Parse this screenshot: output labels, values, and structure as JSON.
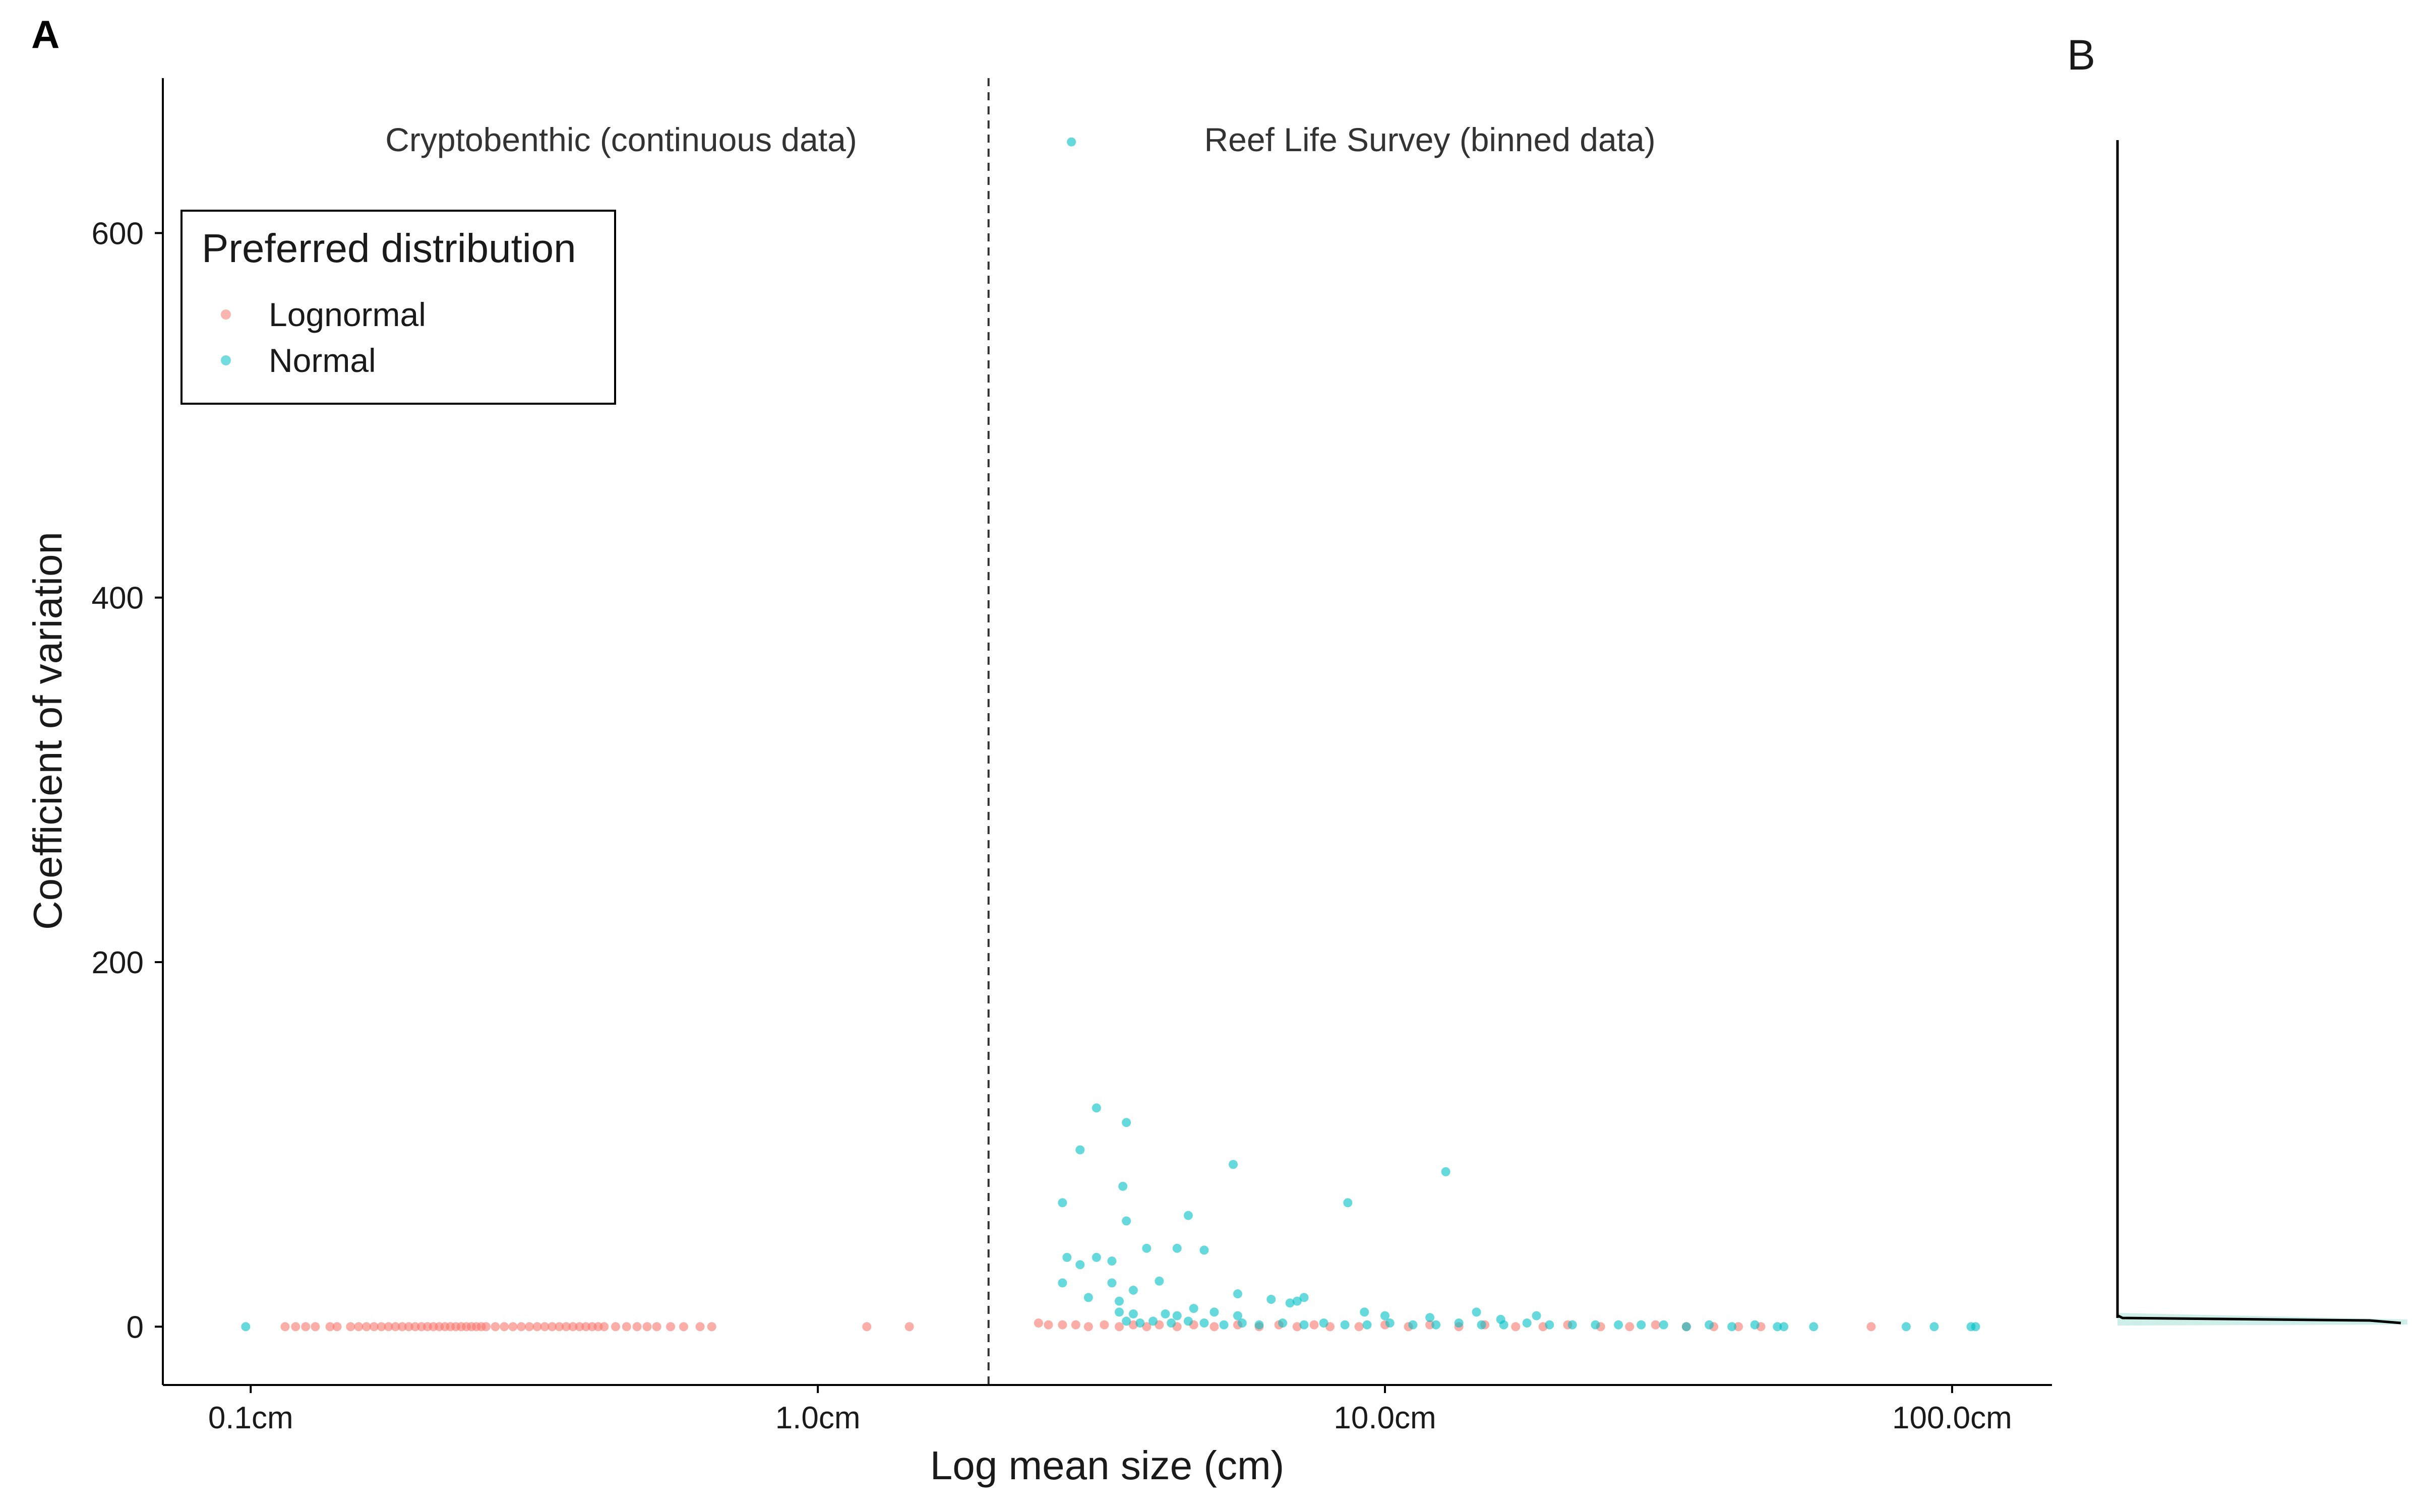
{
  "chart_data": [
    {
      "panel_label": "A",
      "type": "scatter",
      "title": "",
      "xlabel": "Log mean size (cm)",
      "ylabel": "Coefficient of variation",
      "x_scale": "log10",
      "xlim": [
        0.07,
        150
      ],
      "ylim": [
        -32,
        685
      ],
      "x_ticks": [
        {
          "value": 0.1,
          "label": "0.1cm"
        },
        {
          "value": 1,
          "label": "1.0cm"
        },
        {
          "value": 10,
          "label": "10.0cm"
        },
        {
          "value": 100,
          "label": "100.0cm"
        }
      ],
      "y_ticks": [
        {
          "value": 0,
          "label": "0"
        },
        {
          "value": 200,
          "label": "200"
        },
        {
          "value": 400,
          "label": "400"
        },
        {
          "value": 600,
          "label": "600"
        }
      ],
      "grid": false,
      "divider_x": 2,
      "region_labels": [
        {
          "text": "Cryptobenthic (continuous data)",
          "x": 0.45
        },
        {
          "text": "Reef Life Survey (binned data)",
          "x": 12
        }
      ],
      "legend": {
        "title": "Preferred distribution",
        "placement": "top-left",
        "entries": [
          {
            "label": "Lognormal",
            "color": "#F8766D"
          },
          {
            "label": "Normal",
            "color": "#00BFC4"
          }
        ]
      },
      "series": [
        {
          "name": "Lognormal",
          "color": "#F8766D",
          "points": [
            [
              0.115,
              0
            ],
            [
              0.12,
              0
            ],
            [
              0.125,
              0
            ],
            [
              0.13,
              0
            ],
            [
              0.138,
              0
            ],
            [
              0.142,
              0
            ],
            [
              0.15,
              0
            ],
            [
              0.155,
              0
            ],
            [
              0.16,
              0
            ],
            [
              0.165,
              0
            ],
            [
              0.17,
              0
            ],
            [
              0.175,
              0
            ],
            [
              0.18,
              0
            ],
            [
              0.185,
              0
            ],
            [
              0.19,
              0
            ],
            [
              0.195,
              0
            ],
            [
              0.2,
              0
            ],
            [
              0.205,
              0
            ],
            [
              0.21,
              0
            ],
            [
              0.215,
              0
            ],
            [
              0.22,
              0
            ],
            [
              0.225,
              0
            ],
            [
              0.23,
              0
            ],
            [
              0.235,
              0
            ],
            [
              0.24,
              0
            ],
            [
              0.245,
              0
            ],
            [
              0.25,
              0
            ],
            [
              0.255,
              0
            ],
            [
              0.26,
              0
            ],
            [
              0.27,
              0
            ],
            [
              0.28,
              0
            ],
            [
              0.29,
              0
            ],
            [
              0.3,
              0
            ],
            [
              0.31,
              0
            ],
            [
              0.32,
              0
            ],
            [
              0.33,
              0
            ],
            [
              0.34,
              0
            ],
            [
              0.35,
              0
            ],
            [
              0.36,
              0
            ],
            [
              0.37,
              0
            ],
            [
              0.38,
              0
            ],
            [
              0.39,
              0
            ],
            [
              0.4,
              0
            ],
            [
              0.41,
              0
            ],
            [
              0.42,
              0
            ],
            [
              0.44,
              0
            ],
            [
              0.46,
              0
            ],
            [
              0.48,
              0
            ],
            [
              0.5,
              0
            ],
            [
              0.52,
              0
            ],
            [
              0.55,
              0
            ],
            [
              0.58,
              0
            ],
            [
              0.62,
              0
            ],
            [
              0.65,
              0
            ],
            [
              1.22,
              0
            ],
            [
              1.45,
              0
            ],
            [
              2.45,
              2
            ],
            [
              2.55,
              1
            ],
            [
              2.7,
              1
            ],
            [
              2.85,
              1
            ],
            [
              3.0,
              0
            ],
            [
              3.2,
              1
            ],
            [
              3.4,
              0
            ],
            [
              3.6,
              1
            ],
            [
              3.8,
              0
            ],
            [
              4.0,
              1
            ],
            [
              4.3,
              0
            ],
            [
              4.6,
              1
            ],
            [
              5.0,
              0
            ],
            [
              5.5,
              1
            ],
            [
              6.0,
              0
            ],
            [
              6.5,
              1
            ],
            [
              7.0,
              0
            ],
            [
              7.5,
              1
            ],
            [
              8.0,
              0
            ],
            [
              9.0,
              0
            ],
            [
              10.0,
              1
            ],
            [
              11.0,
              0
            ],
            [
              12.0,
              1
            ],
            [
              13.5,
              0
            ],
            [
              15.0,
              1
            ],
            [
              17.0,
              0
            ],
            [
              19.0,
              0
            ],
            [
              21.0,
              1
            ],
            [
              24.0,
              0
            ],
            [
              27.0,
              0
            ],
            [
              30.0,
              1
            ],
            [
              34.0,
              0
            ],
            [
              38.0,
              0
            ],
            [
              42.0,
              0
            ],
            [
              46.0,
              0
            ],
            [
              72.0,
              0
            ]
          ]
        },
        {
          "name": "Normal",
          "color": "#00BFC4",
          "points": [
            [
              0.098,
              0
            ],
            [
              2.8,
              650
            ],
            [
              3.1,
              120
            ],
            [
              3.5,
              112
            ],
            [
              2.9,
              97
            ],
            [
              5.4,
              89
            ],
            [
              12.8,
              85
            ],
            [
              3.45,
              77
            ],
            [
              2.7,
              68
            ],
            [
              8.6,
              68
            ],
            [
              4.5,
              61
            ],
            [
              3.5,
              58
            ],
            [
              3.8,
              43
            ],
            [
              4.3,
              43
            ],
            [
              4.8,
              42
            ],
            [
              2.75,
              38
            ],
            [
              3.1,
              38
            ],
            [
              3.3,
              36
            ],
            [
              2.9,
              34
            ],
            [
              5.5,
              18
            ],
            [
              6.3,
              15
            ],
            [
              7.0,
              14
            ],
            [
              7.2,
              16
            ],
            [
              6.8,
              13
            ],
            [
              4.0,
              25
            ],
            [
              3.3,
              24
            ],
            [
              2.7,
              24
            ],
            [
              3.6,
              20
            ],
            [
              3.4,
              14
            ],
            [
              3.0,
              16
            ],
            [
              3.4,
              8
            ],
            [
              3.6,
              7
            ],
            [
              4.1,
              7
            ],
            [
              4.3,
              6
            ],
            [
              4.6,
              10
            ],
            [
              5.0,
              8
            ],
            [
              5.5,
              6
            ],
            [
              9.2,
              8
            ],
            [
              10.0,
              6
            ],
            [
              12.0,
              5
            ],
            [
              14.5,
              8
            ],
            [
              16.0,
              4
            ],
            [
              18.5,
              6
            ],
            [
              3.5,
              3
            ],
            [
              3.7,
              2
            ],
            [
              3.9,
              3
            ],
            [
              4.2,
              2
            ],
            [
              4.5,
              3
            ],
            [
              4.8,
              2
            ],
            [
              5.2,
              1
            ],
            [
              5.6,
              2
            ],
            [
              6.0,
              1
            ],
            [
              6.6,
              2
            ],
            [
              7.2,
              1
            ],
            [
              7.8,
              2
            ],
            [
              8.5,
              1
            ],
            [
              9.3,
              1
            ],
            [
              10.2,
              2
            ],
            [
              11.2,
              1
            ],
            [
              12.3,
              1
            ],
            [
              13.5,
              2
            ],
            [
              14.8,
              1
            ],
            [
              16.2,
              1
            ],
            [
              17.8,
              2
            ],
            [
              19.5,
              1
            ],
            [
              21.4,
              1
            ],
            [
              23.5,
              1
            ],
            [
              25.8,
              1
            ],
            [
              28.3,
              1
            ],
            [
              31.0,
              1
            ],
            [
              34.0,
              0
            ],
            [
              37.3,
              1
            ],
            [
              40.9,
              0
            ],
            [
              44.9,
              1
            ],
            [
              49.2,
              0
            ],
            [
              50.5,
              0
            ],
            [
              57.0,
              0
            ],
            [
              83.0,
              0
            ],
            [
              93.0,
              0
            ],
            [
              108.0,
              0
            ],
            [
              110.0,
              0
            ]
          ]
        }
      ]
    },
    {
      "panel_label": "B",
      "type": "line",
      "title": ""
    }
  ]
}
